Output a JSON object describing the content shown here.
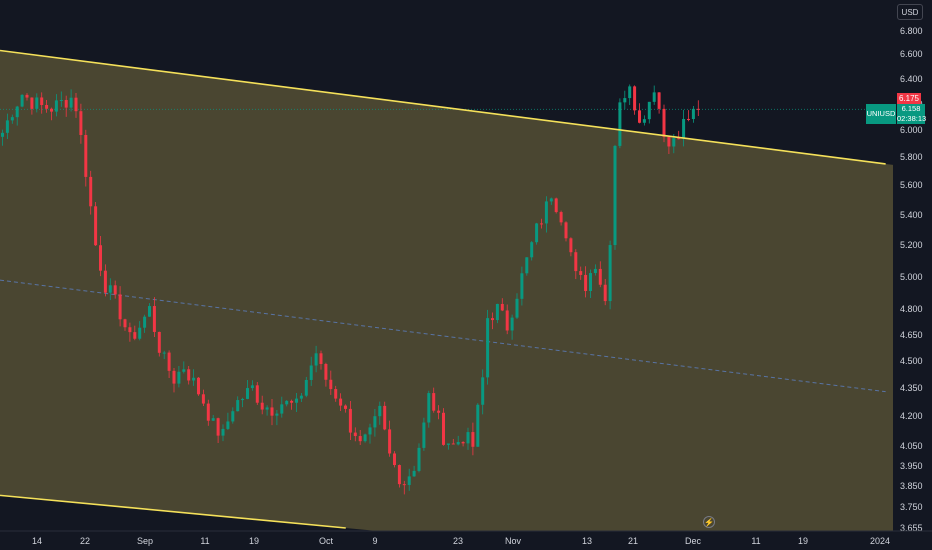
{
  "toolbar": {
    "currency": "USD"
  },
  "symbol": "UNIUSD",
  "price_labels": {
    "last": "6.175",
    "current": "6.158",
    "countdown": "02:38:13"
  },
  "colors": {
    "up": "#089981",
    "down": "#f23645",
    "channel_line": "#f5e15a",
    "channel_fill": "#4a4631",
    "midline": "#5b7bb8",
    "background": "#131722",
    "text": "#d1d4dc"
  },
  "icons": {
    "events": "lightning-icon"
  },
  "chart_data": {
    "type": "candlestick",
    "title": "",
    "y_axis": {
      "scale": "log",
      "range": [
        3.655,
        6.9
      ],
      "ticks": [
        "6.800",
        "6.600",
        "6.400",
        "6.200",
        "6.000",
        "5.800",
        "5.600",
        "5.400",
        "5.200",
        "5.000",
        "4.800",
        "4.650",
        "4.500",
        "4.350",
        "4.200",
        "4.050",
        "3.950",
        "3.850",
        "3.750",
        "3.655"
      ]
    },
    "x_axis": {
      "ticks": [
        "14",
        "22",
        "Sep",
        "11",
        "19",
        "Oct",
        "9",
        "23",
        "Nov",
        "13",
        "21",
        "Dec",
        "11",
        "19",
        "2024"
      ]
    },
    "anchors": [
      [
        0,
        5.98
      ],
      [
        2,
        6.15
      ],
      [
        4,
        6.28
      ],
      [
        6,
        6.22
      ],
      [
        8,
        6.18
      ],
      [
        10,
        6.17
      ],
      [
        12,
        6.21
      ],
      [
        14,
        6.25
      ],
      [
        15,
        6.18
      ],
      [
        17,
        5.7
      ],
      [
        19,
        5.2
      ],
      [
        21,
        4.95
      ],
      [
        22,
        4.9
      ],
      [
        24,
        4.78
      ],
      [
        26,
        4.62
      ],
      [
        28,
        4.7
      ],
      [
        30,
        4.8
      ],
      [
        32,
        4.58
      ],
      [
        33,
        4.5
      ],
      [
        35,
        4.4
      ],
      [
        37,
        4.47
      ],
      [
        39,
        4.38
      ],
      [
        41,
        4.28
      ],
      [
        43,
        4.15
      ],
      [
        45,
        4.1
      ],
      [
        47,
        4.25
      ],
      [
        49,
        4.3
      ],
      [
        51,
        4.35
      ],
      [
        53,
        4.26
      ],
      [
        55,
        4.24
      ],
      [
        57,
        4.27
      ],
      [
        60,
        4.25
      ],
      [
        62,
        4.4
      ],
      [
        64,
        4.55
      ],
      [
        65,
        4.45
      ],
      [
        67,
        4.35
      ],
      [
        69,
        4.28
      ],
      [
        71,
        4.15
      ],
      [
        72,
        4.12
      ],
      [
        73,
        4.05
      ],
      [
        75,
        4.1
      ],
      [
        77,
        4.22
      ],
      [
        79,
        4.0
      ],
      [
        81,
        3.9
      ],
      [
        82,
        3.87
      ],
      [
        84,
        3.95
      ],
      [
        86,
        4.15
      ],
      [
        87,
        4.3
      ],
      [
        88,
        4.25
      ],
      [
        90,
        4.1
      ],
      [
        92,
        4.05
      ],
      [
        94,
        4.1
      ],
      [
        96,
        4.05
      ],
      [
        98,
        4.4
      ],
      [
        99,
        4.75
      ],
      [
        101,
        4.8
      ],
      [
        103,
        4.7
      ],
      [
        105,
        4.9
      ],
      [
        107,
        5.1
      ],
      [
        109,
        5.3
      ],
      [
        111,
        5.45
      ],
      [
        112,
        5.55
      ],
      [
        114,
        5.4
      ],
      [
        115,
        5.3
      ],
      [
        117,
        5.0
      ],
      [
        119,
        4.95
      ],
      [
        121,
        5.1
      ],
      [
        123,
        4.85
      ],
      [
        124,
        5.25
      ],
      [
        125,
        5.9
      ],
      [
        126,
        6.25
      ],
      [
        128,
        6.3
      ],
      [
        130,
        6.1
      ],
      [
        132,
        6.2
      ],
      [
        133,
        6.35
      ],
      [
        135,
        6.0
      ],
      [
        136,
        5.88
      ],
      [
        137,
        5.95
      ],
      [
        139,
        6.05
      ],
      [
        141,
        6.13
      ],
      [
        142,
        6.158
      ]
    ],
    "channel": {
      "upper": [
        [
          "2023-08-07",
          6.63
        ],
        [
          "2023-12-31",
          5.75
        ]
      ],
      "lower": [
        [
          "2023-08-07",
          3.805
        ],
        [
          "2023-10-03",
          3.655
        ]
      ],
      "mid": [
        [
          "2023-08-07",
          4.98
        ],
        [
          "2023-12-31",
          4.33
        ]
      ]
    },
    "price_line": 6.158
  }
}
